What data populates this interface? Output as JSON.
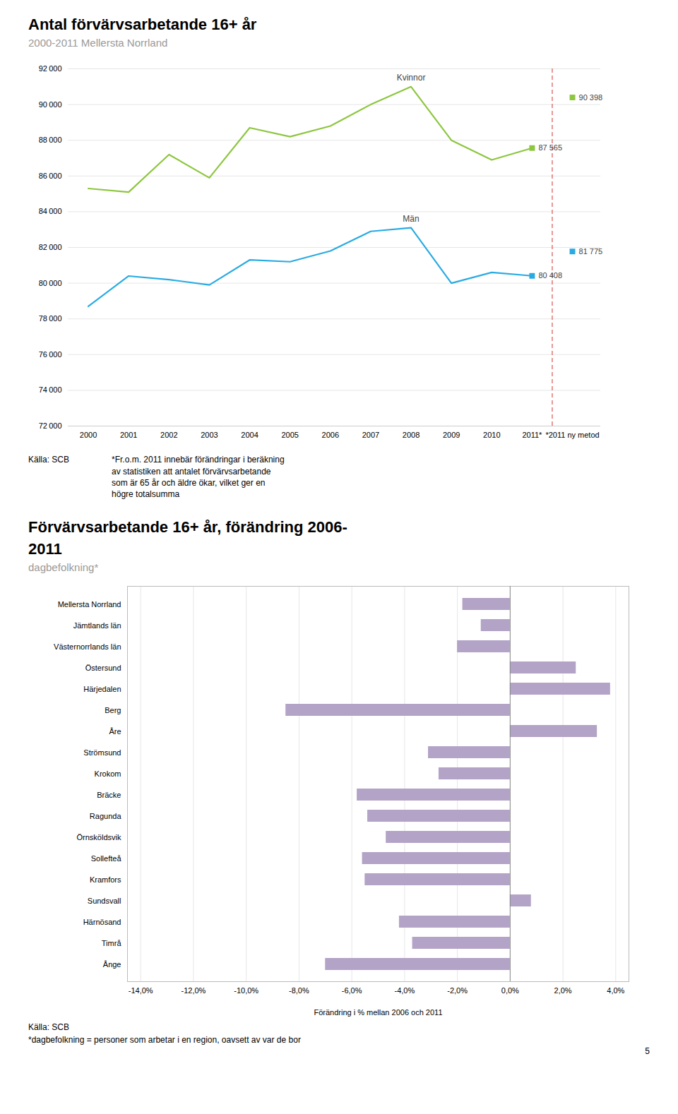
{
  "chart_data": [
    {
      "type": "line",
      "title": "Antal förvärvsarbetande 16+ år",
      "subtitle": "2000-2011 Mellersta Norrland",
      "categories": [
        "2000",
        "2001",
        "2002",
        "2003",
        "2004",
        "2005",
        "2006",
        "2007",
        "2008",
        "2009",
        "2010",
        "2011*",
        "*2011 ny metod"
      ],
      "series": [
        {
          "name": "Kvinnor",
          "color": "#8dc63f",
          "values": [
            85300,
            85100,
            87200,
            85900,
            88700,
            88200,
            88800,
            90000,
            91000,
            88000,
            86900,
            87565,
            90398
          ],
          "value_labels": [
            null,
            null,
            null,
            null,
            null,
            null,
            null,
            null,
            null,
            null,
            null,
            "87 565",
            "90 398"
          ]
        },
        {
          "name": "Män",
          "color": "#29abe2",
          "values": [
            78700,
            80400,
            80200,
            79900,
            81300,
            81200,
            81800,
            82900,
            83100,
            80000,
            80600,
            80408,
            81775
          ],
          "value_labels": [
            null,
            null,
            null,
            null,
            null,
            null,
            null,
            null,
            null,
            null,
            null,
            "80 408",
            "81 775"
          ]
        }
      ],
      "ylim": [
        72000,
        92000
      ],
      "yticks": [
        {
          "value": 72000,
          "label": "72 000"
        },
        {
          "value": 74000,
          "label": "74 000"
        },
        {
          "value": 76000,
          "label": "76 000"
        },
        {
          "value": 78000,
          "label": "78 000"
        },
        {
          "value": 80000,
          "label": "80 000"
        },
        {
          "value": 82000,
          "label": "82 000"
        },
        {
          "value": 84000,
          "label": "84 000"
        },
        {
          "value": 86000,
          "label": "86 000"
        },
        {
          "value": 88000,
          "label": "88 000"
        },
        {
          "value": 90000,
          "label": "90 000"
        },
        {
          "value": 92000,
          "label": "92 000"
        }
      ],
      "grid": true,
      "source": "Källa: SCB",
      "footnote": [
        "*Fr.o.m. 2011 innebär förändringar i beräkning",
        "av statistiken att antalet förvärvsarbetande",
        "som är 65 år och äldre ökar, vilket ger en",
        "högre totalsumma"
      ]
    },
    {
      "type": "bar",
      "orientation": "horizontal",
      "title": [
        "Förvärvsarbetande 16+ år, förändring 2006-",
        "2011"
      ],
      "subtitle": "dagbefolkning*",
      "xlabel": "Förändring i % mellan 2006 och 2011",
      "categories": [
        "Mellersta Norrland",
        "Jämtlands län",
        "Västernorrlands län",
        "Östersund",
        "Härjedalen",
        "Berg",
        "Åre",
        "Strömsund",
        "Krokom",
        "Bräcke",
        "Ragunda",
        "Örnsköldsvik",
        "Sollefteå",
        "Kramfors",
        "Sundsvall",
        "Härnösand",
        "Timrå",
        "Ånge"
      ],
      "values": [
        -1.8,
        -1.1,
        -2.0,
        2.5,
        3.8,
        -8.5,
        3.3,
        -3.1,
        -2.7,
        -5.8,
        -5.4,
        -4.7,
        -5.6,
        -5.5,
        0.8,
        -4.2,
        -3.7,
        -7.0
      ],
      "color": "#b3a3c7",
      "xlim": [
        -14.5,
        4.5
      ],
      "xticks": [
        {
          "value": -14,
          "label": "-14,0%"
        },
        {
          "value": -12,
          "label": "-12,0%"
        },
        {
          "value": -10,
          "label": "-10,0%"
        },
        {
          "value": -8,
          "label": "-8,0%"
        },
        {
          "value": -6,
          "label": "-6,0%"
        },
        {
          "value": -4,
          "label": "-4,0%"
        },
        {
          "value": -2,
          "label": "-2,0%"
        },
        {
          "value": 0,
          "label": "0,0%"
        },
        {
          "value": 2,
          "label": "2,0%"
        },
        {
          "value": 4,
          "label": "4,0%"
        }
      ],
      "grid": true,
      "source": "Källa: SCB",
      "footnote": [
        "*dagbefolkning = personer som arbetar i en region, oavsett av var de bor"
      ],
      "page_number": "5"
    }
  ]
}
